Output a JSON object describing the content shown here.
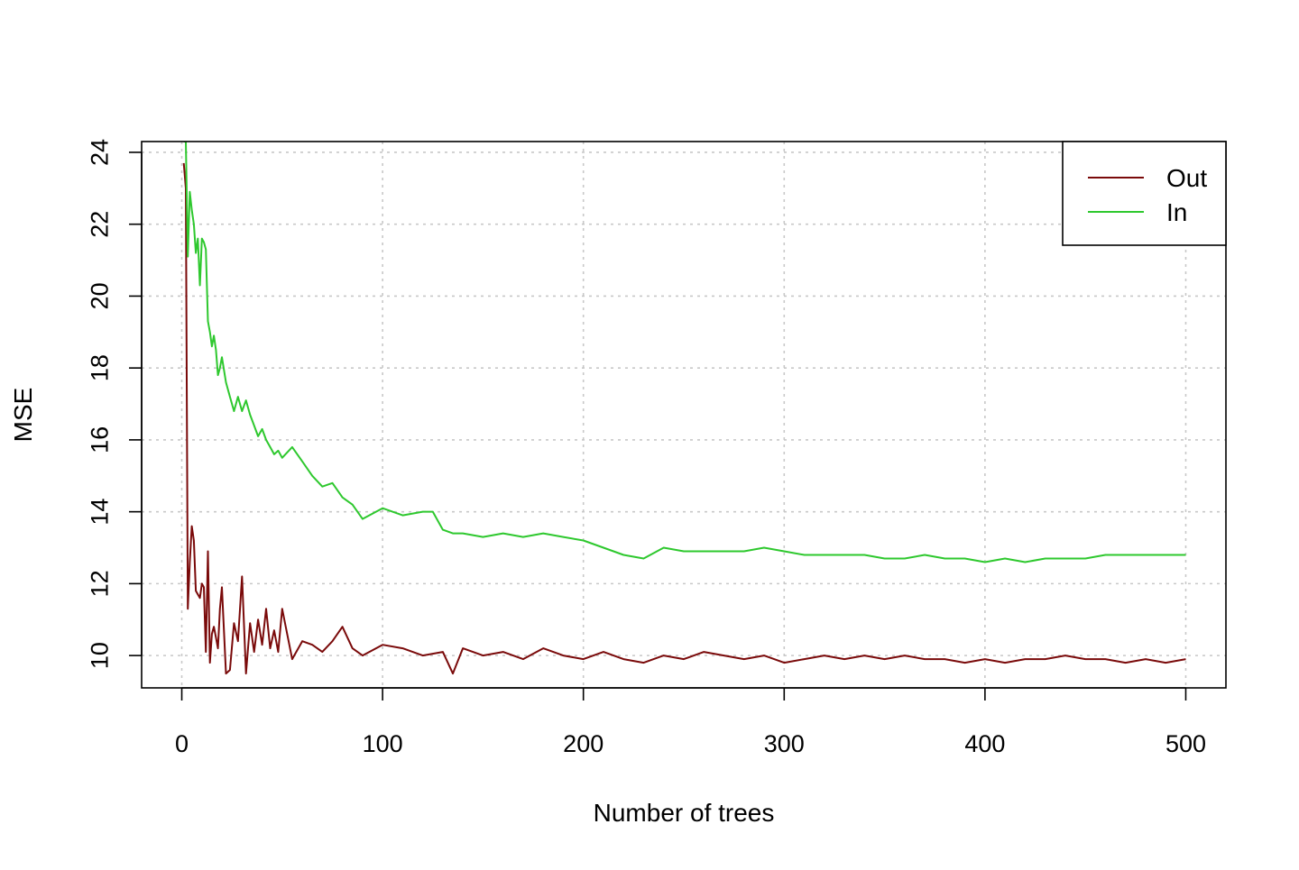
{
  "chart_data": {
    "type": "line",
    "title": "",
    "xlabel": "Number of trees",
    "ylabel": "MSE",
    "xlim": [
      0,
      500
    ],
    "ylim": [
      9.1,
      24.3
    ],
    "x_ticks": [
      0,
      100,
      200,
      300,
      400,
      500
    ],
    "y_ticks": [
      10,
      12,
      14,
      16,
      18,
      20,
      22,
      24
    ],
    "grid": true,
    "legend_position": "top-right",
    "series": [
      {
        "name": "Out",
        "color": "#7a0a0a",
        "x": [
          1,
          2,
          3,
          4,
          5,
          6,
          7,
          8,
          9,
          10,
          11,
          12,
          13,
          14,
          15,
          16,
          17,
          18,
          19,
          20,
          22,
          24,
          26,
          28,
          30,
          32,
          34,
          36,
          38,
          40,
          42,
          44,
          46,
          48,
          50,
          55,
          60,
          65,
          70,
          75,
          80,
          85,
          90,
          100,
          110,
          120,
          130,
          135,
          140,
          150,
          160,
          170,
          180,
          190,
          200,
          210,
          220,
          230,
          240,
          250,
          260,
          270,
          280,
          290,
          300,
          310,
          320,
          330,
          340,
          350,
          360,
          370,
          380,
          390,
          400,
          410,
          420,
          430,
          440,
          450,
          460,
          470,
          480,
          490,
          500
        ],
        "y": [
          23.7,
          23.0,
          11.3,
          12.6,
          13.6,
          13.2,
          11.8,
          11.7,
          11.6,
          12.0,
          11.9,
          10.1,
          12.9,
          9.8,
          10.6,
          10.8,
          10.5,
          10.2,
          11.3,
          11.9,
          9.5,
          9.6,
          10.9,
          10.4,
          12.2,
          9.5,
          10.9,
          10.1,
          11.0,
          10.3,
          11.3,
          10.2,
          10.7,
          10.1,
          11.3,
          9.9,
          10.4,
          10.3,
          10.1,
          10.4,
          10.8,
          10.2,
          10.0,
          10.3,
          10.2,
          10.0,
          10.1,
          9.5,
          10.2,
          10.0,
          10.1,
          9.9,
          10.2,
          10.0,
          9.9,
          10.1,
          9.9,
          9.8,
          10.0,
          9.9,
          10.1,
          10.0,
          9.9,
          10.0,
          9.8,
          9.9,
          10.0,
          9.9,
          10.0,
          9.9,
          10.0,
          9.9,
          9.9,
          9.8,
          9.9,
          9.8,
          9.9,
          9.9,
          10.0,
          9.9,
          9.9,
          9.8,
          9.9,
          9.8,
          9.9
        ]
      },
      {
        "name": "In",
        "color": "#2ec82e",
        "x": [
          1,
          2,
          3,
          4,
          5,
          6,
          7,
          8,
          9,
          10,
          11,
          12,
          13,
          14,
          15,
          16,
          17,
          18,
          19,
          20,
          22,
          24,
          26,
          28,
          30,
          32,
          34,
          36,
          38,
          40,
          42,
          44,
          46,
          48,
          50,
          55,
          60,
          65,
          70,
          75,
          80,
          85,
          90,
          100,
          110,
          120,
          125,
          130,
          135,
          140,
          150,
          160,
          170,
          180,
          190,
          200,
          210,
          220,
          230,
          240,
          250,
          260,
          270,
          280,
          290,
          300,
          310,
          320,
          330,
          340,
          350,
          360,
          370,
          380,
          390,
          400,
          410,
          420,
          430,
          440,
          450,
          460,
          470,
          480,
          490,
          500
        ],
        "y": [
          24.3,
          24.3,
          21.1,
          22.9,
          22.4,
          22.0,
          21.2,
          21.6,
          20.3,
          21.6,
          21.5,
          21.3,
          19.3,
          19.0,
          18.6,
          18.9,
          18.5,
          17.8,
          18.0,
          18.3,
          17.6,
          17.2,
          16.8,
          17.2,
          16.8,
          17.1,
          16.7,
          16.4,
          16.1,
          16.3,
          16.0,
          15.8,
          15.6,
          15.7,
          15.5,
          15.8,
          15.4,
          15.0,
          14.7,
          14.8,
          14.4,
          14.2,
          13.8,
          14.1,
          13.9,
          14.0,
          14.0,
          13.5,
          13.4,
          13.4,
          13.3,
          13.4,
          13.3,
          13.4,
          13.3,
          13.2,
          13.0,
          12.8,
          12.7,
          13.0,
          12.9,
          12.9,
          12.9,
          12.9,
          13.0,
          12.9,
          12.8,
          12.8,
          12.8,
          12.8,
          12.7,
          12.7,
          12.8,
          12.7,
          12.7,
          12.6,
          12.7,
          12.6,
          12.7,
          12.7,
          12.7,
          12.8,
          12.8,
          12.8,
          12.8,
          12.8
        ]
      }
    ]
  }
}
